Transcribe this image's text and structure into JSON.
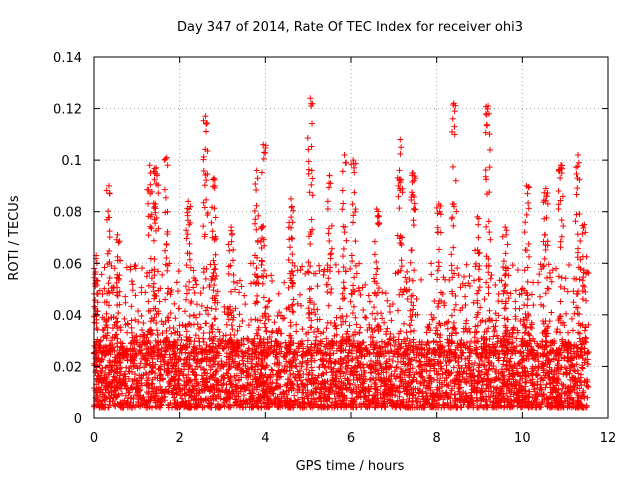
{
  "chart_data": {
    "type": "scatter",
    "title": "Day 347 of 2014, Rate Of TEC Index for receiver ohi3",
    "xlabel": "GPS time / hours",
    "ylabel": "ROTI / TECUs",
    "xlim": [
      0,
      12
    ],
    "ylim": [
      0,
      0.14
    ],
    "x_ticks": [
      0,
      2,
      4,
      6,
      8,
      10,
      12
    ],
    "y_ticks": [
      0,
      0.02,
      0.04,
      0.06,
      0.08,
      0.1,
      0.12,
      0.14
    ],
    "x_tick_labels": [
      "0",
      "2",
      "4",
      "6",
      "8",
      "10",
      "12"
    ],
    "y_tick_labels": [
      "0",
      "0.02",
      "0.04",
      "0.06",
      "0.08",
      "0.1",
      "0.12",
      "0.14"
    ],
    "grid": true,
    "marker": "+",
    "marker_color": "#ff0000",
    "series": [
      {
        "name": "ROTI",
        "points_note": "dense cloud 0.005-0.03 across 0-11.5 h, with spikes",
        "peaks": [
          {
            "x": 0.05,
            "y": 0.063
          },
          {
            "x": 0.35,
            "y": 0.09
          },
          {
            "x": 0.55,
            "y": 0.071
          },
          {
            "x": 1.3,
            "y": 0.098
          },
          {
            "x": 1.45,
            "y": 0.097
          },
          {
            "x": 1.7,
            "y": 0.101
          },
          {
            "x": 2.2,
            "y": 0.084
          },
          {
            "x": 2.6,
            "y": 0.117
          },
          {
            "x": 2.8,
            "y": 0.093
          },
          {
            "x": 3.2,
            "y": 0.074
          },
          {
            "x": 3.8,
            "y": 0.096
          },
          {
            "x": 3.95,
            "y": 0.106
          },
          {
            "x": 4.6,
            "y": 0.085
          },
          {
            "x": 5.05,
            "y": 0.124
          },
          {
            "x": 5.5,
            "y": 0.094
          },
          {
            "x": 5.85,
            "y": 0.102
          },
          {
            "x": 6.05,
            "y": 0.1
          },
          {
            "x": 6.6,
            "y": 0.081
          },
          {
            "x": 7.15,
            "y": 0.108
          },
          {
            "x": 7.45,
            "y": 0.095
          },
          {
            "x": 8.05,
            "y": 0.083
          },
          {
            "x": 8.4,
            "y": 0.122
          },
          {
            "x": 8.95,
            "y": 0.078
          },
          {
            "x": 9.2,
            "y": 0.121
          },
          {
            "x": 9.6,
            "y": 0.074
          },
          {
            "x": 10.1,
            "y": 0.09
          },
          {
            "x": 10.55,
            "y": 0.089
          },
          {
            "x": 10.9,
            "y": 0.098
          },
          {
            "x": 11.3,
            "y": 0.102
          },
          {
            "x": 11.45,
            "y": 0.075
          }
        ],
        "x_range": [
          0,
          11.55
        ],
        "baseline_range": [
          0.004,
          0.03
        ]
      }
    ]
  }
}
